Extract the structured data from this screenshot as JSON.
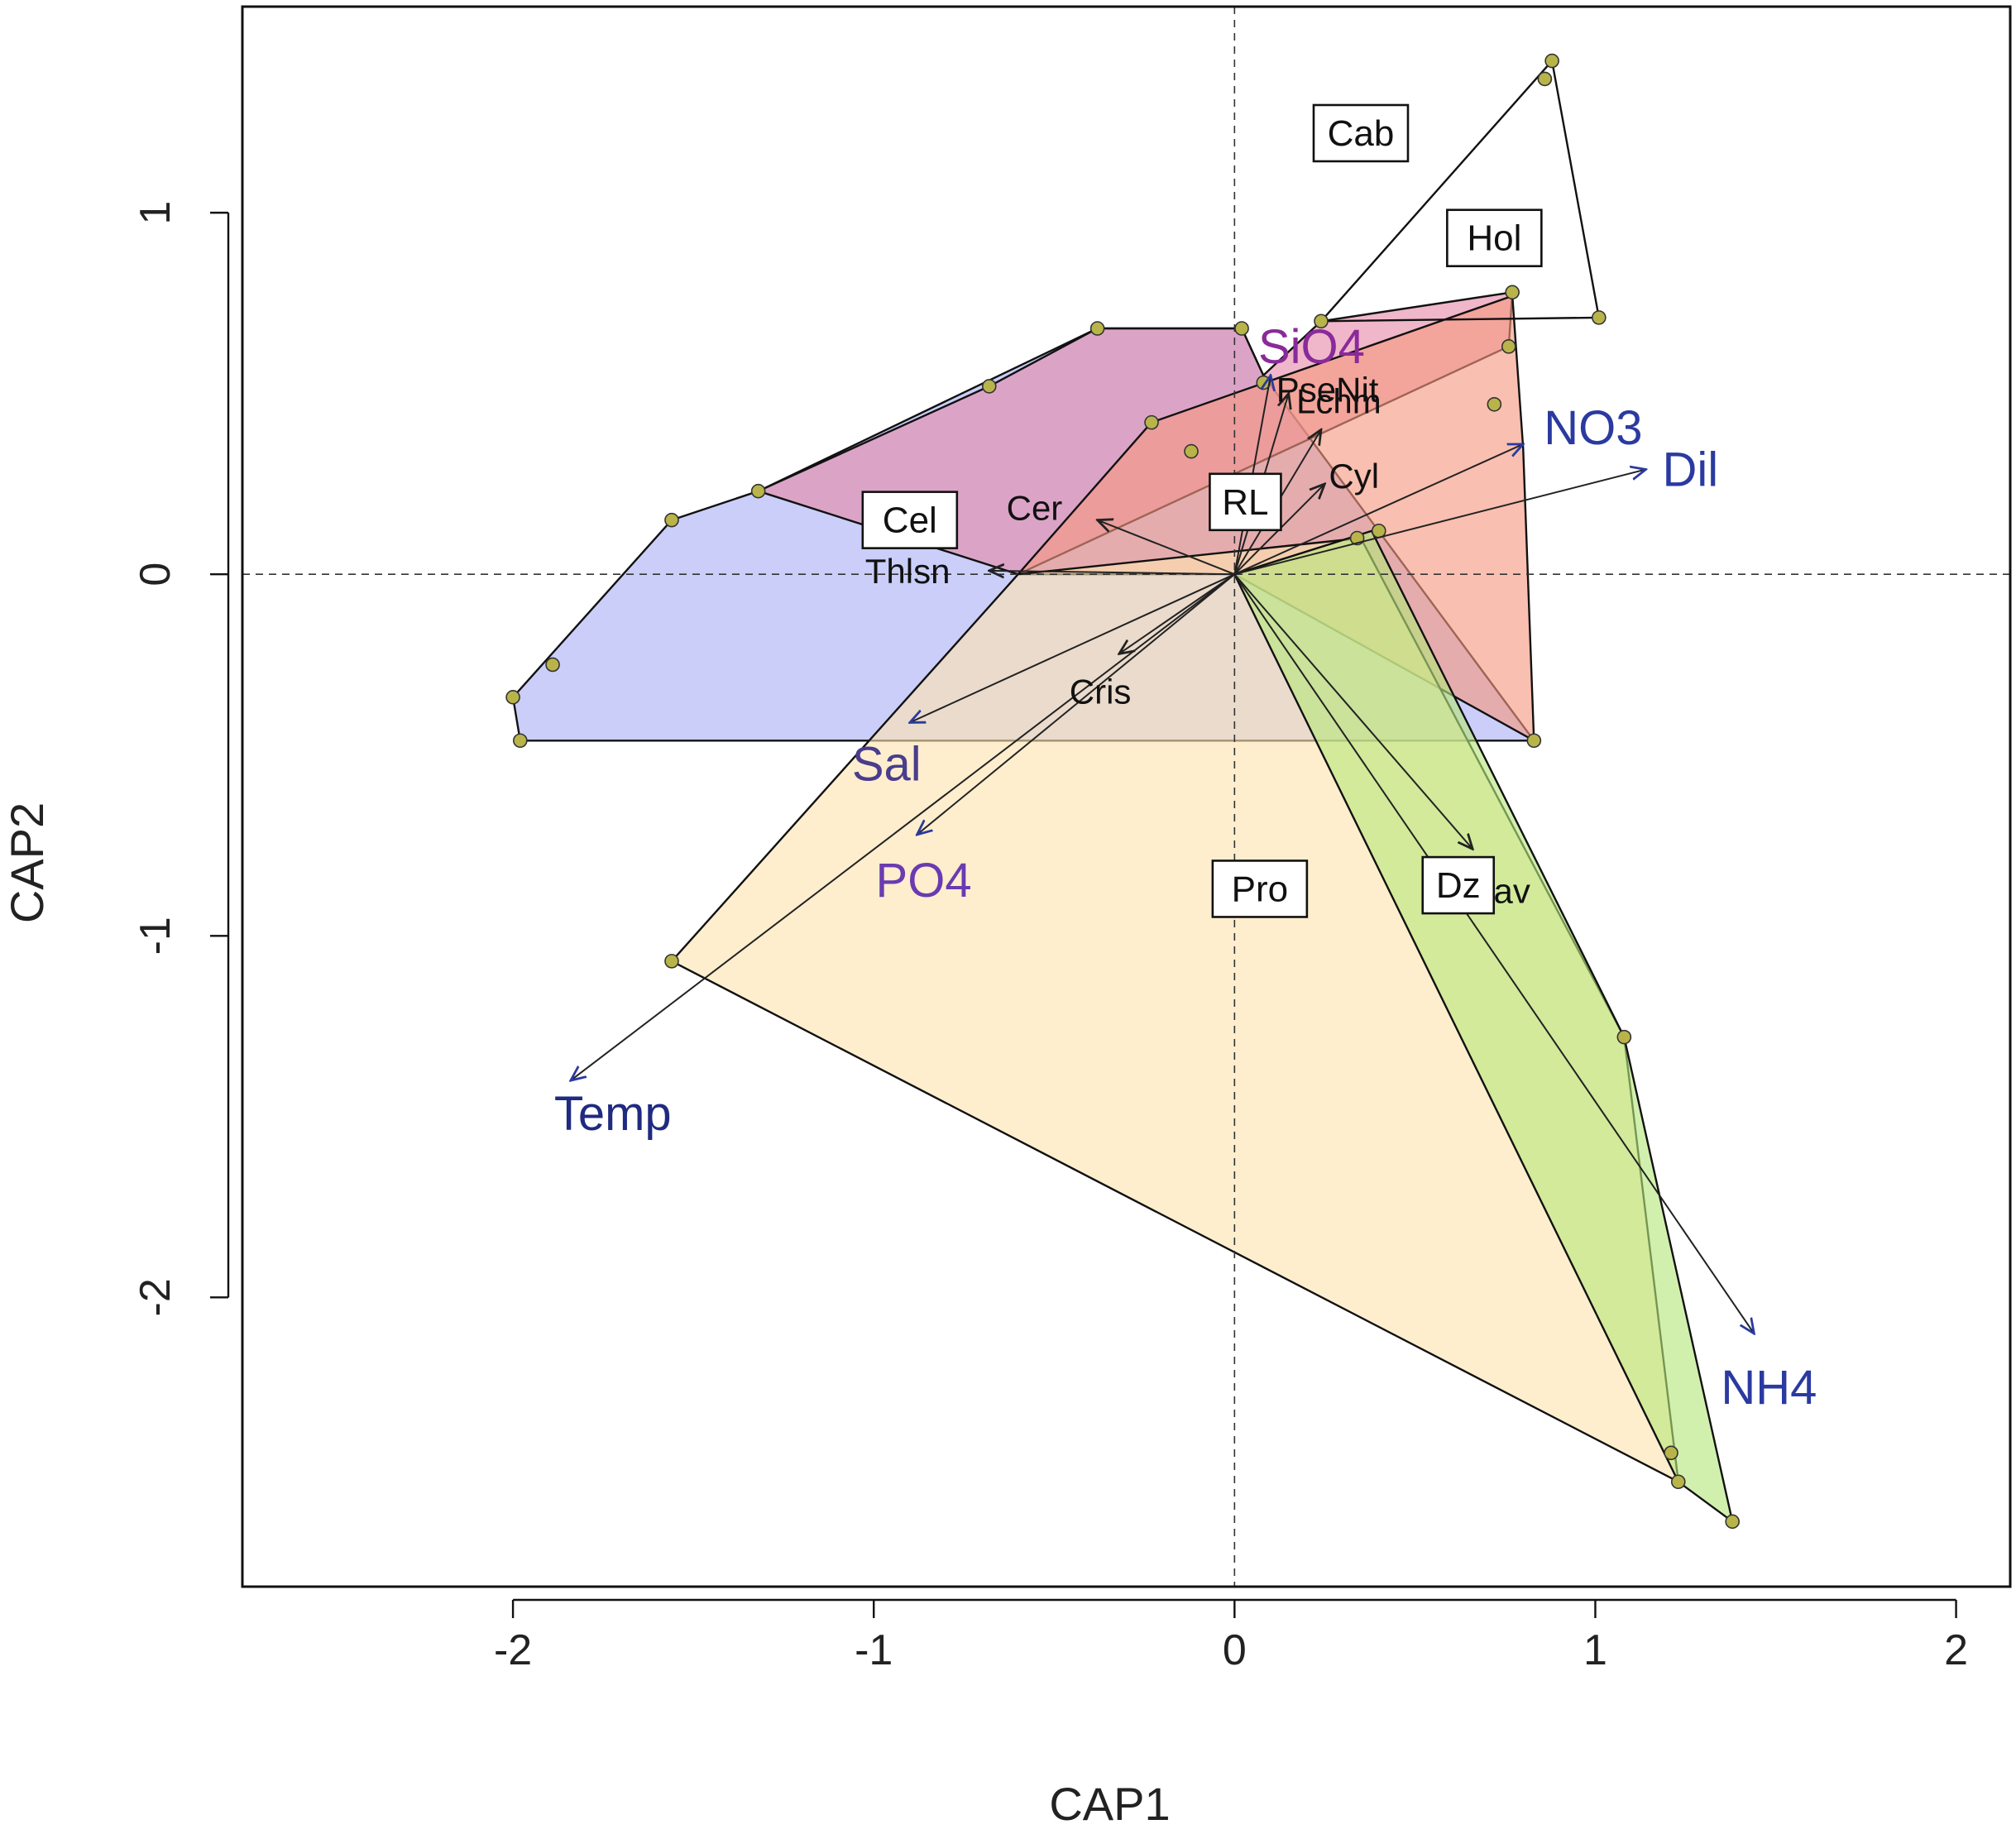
{
  "chart_data": {
    "type": "scatter",
    "xlabel": "CAP1",
    "ylabel": "CAP2",
    "xlim": [
      -2.75,
      2.15
    ],
    "ylim": [
      -2.8,
      1.57
    ],
    "xticks": [
      -2,
      -1,
      0,
      1,
      2
    ],
    "yticks": [
      -2,
      -1,
      0,
      1
    ],
    "tick_labels_x": [
      "-2",
      "-1",
      "0",
      "1",
      "2"
    ],
    "tick_labels_y": [
      "-2",
      "-1",
      "0",
      "1"
    ],
    "grid": false,
    "zero_lines": true,
    "hulls": [
      {
        "color": "#aab0f5",
        "points": [
          [
            -1.98,
            -0.46
          ],
          [
            -2.0,
            -0.34
          ],
          [
            -1.56,
            0.15
          ],
          [
            -1.32,
            0.23
          ],
          [
            -0.38,
            0.68
          ],
          [
            0.02,
            0.68
          ],
          [
            0.08,
            0.55
          ],
          [
            0.83,
            -0.46
          ]
        ]
      },
      {
        "color": "#e58aa8",
        "points": [
          [
            -1.32,
            0.23
          ],
          [
            -0.68,
            0.52
          ],
          [
            -0.38,
            0.68
          ],
          [
            0.02,
            0.68
          ],
          [
            0.08,
            0.55
          ],
          [
            0.24,
            0.7
          ],
          [
            0.77,
            0.78
          ],
          [
            0.76,
            0.63
          ],
          [
            -0.6,
            0.0
          ]
        ]
      },
      {
        "color": "#f59880",
        "points": [
          [
            -0.6,
            0.0
          ],
          [
            -0.23,
            0.42
          ],
          [
            0.77,
            0.77
          ],
          [
            0.8,
            0.35
          ],
          [
            0.83,
            -0.46
          ],
          [
            0.0,
            0.0
          ]
        ]
      },
      {
        "color": "#fde3b0",
        "points": [
          [
            -1.56,
            -1.07
          ],
          [
            1.23,
            -2.51
          ],
          [
            1.08,
            -1.28
          ],
          [
            0.35,
            0.1
          ],
          [
            -0.6,
            0.0
          ]
        ]
      },
      {
        "color": "#b6e67a",
        "points": [
          [
            0.0,
            0.0
          ],
          [
            0.38,
            0.12
          ],
          [
            1.08,
            -1.28
          ],
          [
            1.38,
            -2.62
          ],
          [
            1.23,
            -2.51
          ]
        ]
      },
      {
        "color": "#ffffff",
        "outline_only": true,
        "points": [
          [
            0.24,
            0.7
          ],
          [
            0.88,
            1.42
          ],
          [
            1.01,
            0.71
          ]
        ]
      }
    ],
    "hull_vertices": [
      [
        -1.98,
        -0.46
      ],
      [
        -2.0,
        -0.34
      ],
      [
        -1.89,
        -0.25
      ],
      [
        -1.56,
        0.15
      ],
      [
        -1.32,
        0.23
      ],
      [
        -0.68,
        0.52
      ],
      [
        -0.38,
        0.68
      ],
      [
        0.02,
        0.68
      ],
      [
        0.24,
        0.7
      ],
      [
        0.88,
        1.42
      ],
      [
        0.86,
        1.37
      ],
      [
        1.01,
        0.71
      ],
      [
        0.77,
        0.78
      ],
      [
        0.76,
        0.63
      ],
      [
        0.72,
        0.47
      ],
      [
        0.83,
        -0.46
      ],
      [
        1.08,
        -1.28
      ],
      [
        1.23,
        -2.51
      ],
      [
        1.21,
        -2.43
      ],
      [
        1.38,
        -2.62
      ],
      [
        -1.56,
        -1.07
      ],
      [
        0.34,
        0.1
      ],
      [
        0.4,
        0.12
      ],
      [
        -0.23,
        0.42
      ],
      [
        -0.12,
        0.34
      ],
      [
        0.08,
        0.53
      ]
    ],
    "env_vectors": [
      {
        "label": "Temp",
        "x": -1.84,
        "y": -1.4,
        "color": "#1f2a80"
      },
      {
        "label": "PO4",
        "x": -0.88,
        "y": -0.72,
        "color": "#6a3bb0"
      },
      {
        "label": "Sal",
        "x": -0.9,
        "y": -0.41,
        "color": "#4a3d8c"
      },
      {
        "label": "SiO4",
        "x": 0.1,
        "y": 0.55,
        "color": "#8a2a9a"
      },
      {
        "label": "NO3",
        "x": 0.8,
        "y": 0.36,
        "color": "#2a3aa0"
      },
      {
        "label": "Dil",
        "x": 1.14,
        "y": 0.29,
        "color": "#2a3aa0"
      },
      {
        "label": "NH4",
        "x": 1.44,
        "y": -2.1,
        "color": "#2a3aa0"
      }
    ],
    "taxon_vectors": [
      {
        "label": "Thlsn",
        "x": -0.68,
        "y": 0.01
      },
      {
        "label": "Cer",
        "x": -0.38,
        "y": 0.15
      },
      {
        "label": "Cris",
        "x": -0.32,
        "y": -0.22
      },
      {
        "label": "PseNit",
        "x": 0.15,
        "y": 0.5
      },
      {
        "label": "Lchm",
        "x": 0.24,
        "y": 0.4
      },
      {
        "label": "Cyl",
        "x": 0.25,
        "y": 0.25
      },
      {
        "label": "Nav",
        "x": 0.66,
        "y": -0.76
      }
    ],
    "group_labels": [
      {
        "label": "Cab",
        "x": 0.35,
        "y": 1.22
      },
      {
        "label": "Hol",
        "x": 0.72,
        "y": 0.93
      },
      {
        "label": "Cel",
        "x": -0.9,
        "y": 0.15
      },
      {
        "label": "RL",
        "x": 0.03,
        "y": 0.2
      },
      {
        "label": "Pro",
        "x": 0.07,
        "y": -0.87
      },
      {
        "label": "Dz",
        "x": 0.62,
        "y": -0.86
      }
    ]
  }
}
